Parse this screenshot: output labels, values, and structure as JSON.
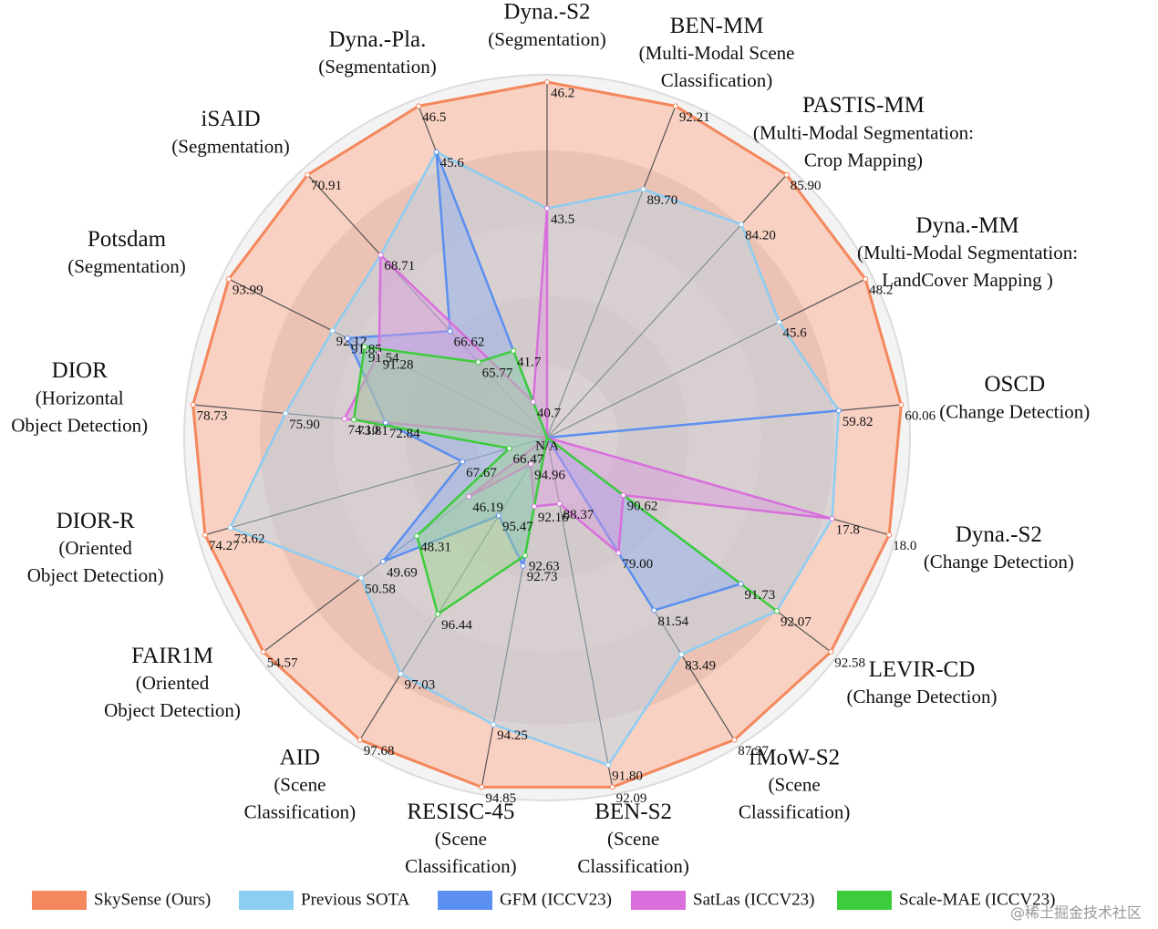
{
  "chart_data": {
    "type": "radar",
    "categories": [
      [
        "Dyna.-S2",
        "(Segmentation)"
      ],
      [
        "BEN-MM",
        "(Multi-Modal Scene",
        "Classification)"
      ],
      [
        "PASTIS-MM",
        "(Multi-Modal Segmentation:",
        "Crop Mapping)"
      ],
      [
        "Dyna.-MM",
        "(Multi-Modal Segmentation:",
        "LandCover Mapping )"
      ],
      [
        "OSCD",
        "(Change Detection)"
      ],
      [
        "Dyna.-S2",
        "(Change Detection)"
      ],
      [
        "LEVIR-CD",
        "(Change Detection)"
      ],
      [
        "fMoW-S2",
        "(Scene",
        "Classification)"
      ],
      [
        "BEN-S2",
        "(Scene",
        "Classification)"
      ],
      [
        "RESISC-45",
        "(Scene",
        "Classification)"
      ],
      [
        "AID",
        "(Scene",
        "Classification)"
      ],
      [
        "FAIR1M",
        "(Oriented",
        "Object Detection)"
      ],
      [
        "DIOR-R",
        "(Oriented",
        "Object Detection)"
      ],
      [
        "DIOR",
        "(Horizontal",
        "Object Detection)"
      ],
      [
        "Potsdam",
        "(Segmentation)"
      ],
      [
        "iSAID",
        "(Segmentation)"
      ],
      [
        "Dyna.-Pla.",
        "(Segmentation)"
      ]
    ],
    "rlim": [
      [
        38.6,
        46.2
      ],
      [
        82.2,
        92.21
      ],
      [
        76.9,
        85.9
      ],
      [
        38.6,
        48.2
      ],
      [
        58.7,
        60.06
      ],
      [
        16.8,
        18.0
      ],
      [
        89.9,
        92.58
      ],
      [
        73.9,
        87.27
      ],
      [
        87.5,
        92.09
      ],
      [
        91.5,
        94.85
      ],
      [
        94.7,
        97.68
      ],
      [
        43.0,
        54.57
      ],
      [
        65.5,
        74.27
      ],
      [
        67.9,
        78.73
      ],
      [
        88.25,
        93.99
      ],
      [
        63.7,
        70.91
      ],
      [
        40.0,
        46.5
      ]
    ],
    "center_label": "N/A",
    "series": [
      {
        "name": "SkySense (Ours)",
        "color": "#f4875c",
        "fill": "#fbb49a",
        "values": [
          46.2,
          92.21,
          85.9,
          48.2,
          60.06,
          18.0,
          92.58,
          87.27,
          92.09,
          94.85,
          97.68,
          54.57,
          74.27,
          78.73,
          93.99,
          70.91,
          46.5
        ],
        "value_labels": [
          "46.2",
          "92.21",
          "85.90",
          "48.2",
          "60.06",
          "18.0",
          "92.58",
          "87.27",
          "92.09",
          "94.85",
          "97.68",
          "54.57",
          "74.27",
          "78.73",
          "93.99",
          "70.91",
          "46.5"
        ]
      },
      {
        "name": "Previous SOTA",
        "color": "#8ccdf2",
        "fill": "#b9d8ea",
        "values": [
          43.5,
          89.7,
          84.2,
          45.6,
          59.82,
          17.8,
          92.07,
          83.49,
          91.8,
          94.25,
          97.03,
          50.58,
          73.62,
          75.9,
          92.12,
          68.71,
          45.6
        ],
        "value_labels": [
          "43.5",
          "89.70",
          "84.20",
          "45.6",
          "59.82",
          "17.8",
          "92.07",
          "83.49",
          "91.80",
          "94.25",
          "97.03",
          "50.58",
          "73.62",
          "75.90",
          "92.12",
          "68.71",
          "45.6"
        ]
      },
      {
        "name": "GFM (ICCV23)",
        "color": "#5b8ff0",
        "fill": "#8fb0f2",
        "values": [
          null,
          null,
          null,
          null,
          59.82,
          null,
          91.73,
          81.54,
          null,
          92.73,
          95.47,
          49.69,
          67.67,
          72.84,
          91.85,
          66.62,
          45.6
        ],
        "value_labels": [
          null,
          null,
          null,
          null,
          null,
          null,
          "91.73",
          "81.54",
          null,
          "92.73",
          "95.47",
          "49.69",
          "67.67",
          "72.84",
          "91.85",
          "66.62",
          null
        ]
      },
      {
        "name": "SatLas (ICCV23)",
        "color": "#d86fdc",
        "fill": "#d99ade",
        "values": [
          43.5,
          null,
          null,
          null,
          null,
          17.8,
          90.62,
          79.0,
          88.37,
          92.16,
          94.96,
          46.19,
          null,
          74.1,
          91.28,
          68.71,
          40.7
        ],
        "value_labels": [
          null,
          null,
          null,
          null,
          null,
          null,
          "90.62",
          "79.00",
          "88.37",
          "92.16",
          "94.96",
          "46.19",
          null,
          "74.10",
          "91.28",
          null,
          "40.7"
        ]
      },
      {
        "name": "Scale-MAE (ICCV23)",
        "color": "#3ccc3c",
        "fill": "#9cd890",
        "values": [
          null,
          null,
          null,
          null,
          null,
          null,
          92.07,
          null,
          null,
          92.63,
          96.44,
          48.31,
          66.47,
          73.81,
          91.54,
          65.77,
          41.7
        ],
        "value_labels": [
          null,
          null,
          null,
          null,
          null,
          null,
          null,
          null,
          null,
          "92.63",
          "96.44",
          "48.31",
          "66.47",
          "73.81",
          "91.54",
          "65.77",
          "41.7"
        ]
      }
    ],
    "legend": "bottom"
  },
  "watermark": "@稀土掘金技术社区"
}
